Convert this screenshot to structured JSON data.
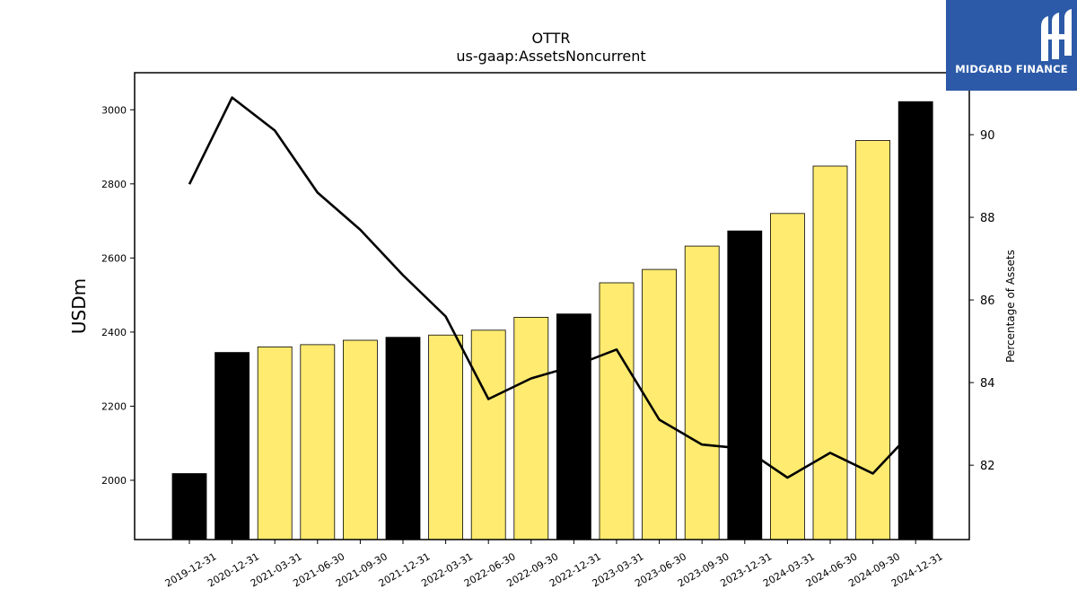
{
  "logo": {
    "name": "MIDGARD FINANCE",
    "background": "#2c5aa8"
  },
  "chart_data": {
    "type": "bar",
    "title": "OTTR",
    "subtitle": "us-gaap:AssetsNoncurrent",
    "ylabel": "USDm",
    "y2label": "Percentage of Assets",
    "ylim": [
      1840,
      3100
    ],
    "y2lim": [
      80.2,
      91.5
    ],
    "yticks": [
      2000,
      2200,
      2400,
      2600,
      2800,
      3000
    ],
    "y2ticks": [
      82,
      84,
      86,
      88,
      90
    ],
    "categories": [
      "2019-12-31",
      "2020-12-31",
      "2021-03-31",
      "2021-06-30",
      "2021-09-30",
      "2021-12-31",
      "2022-03-31",
      "2022-06-30",
      "2022-09-30",
      "2022-12-31",
      "2023-03-31",
      "2023-06-30",
      "2023-09-30",
      "2023-12-31",
      "2024-03-31",
      "2024-06-30",
      "2024-09-30",
      "2024-12-31"
    ],
    "series": [
      {
        "type": "bar",
        "values": [
          2018,
          2345,
          2360,
          2366,
          2378,
          2386,
          2392,
          2405,
          2440,
          2449,
          2533,
          2569,
          2632,
          2673,
          2720,
          2848,
          2917,
          3022
        ],
        "colors": [
          "#000000",
          "#000000",
          "#ffeb70",
          "#ffeb70",
          "#ffeb70",
          "#000000",
          "#ffeb70",
          "#ffeb70",
          "#ffeb70",
          "#000000",
          "#ffeb70",
          "#ffeb70",
          "#ffeb70",
          "#000000",
          "#ffeb70",
          "#ffeb70",
          "#ffeb70",
          "#000000"
        ]
      },
      {
        "type": "line",
        "axis": "right",
        "color": "#000000",
        "values": [
          88.8,
          90.9,
          90.1,
          88.6,
          87.7,
          86.6,
          85.6,
          83.6,
          84.1,
          84.4,
          84.8,
          83.1,
          82.5,
          82.4,
          81.7,
          82.3,
          81.8,
          82.9
        ]
      }
    ],
    "grid": false,
    "legend": "none"
  }
}
